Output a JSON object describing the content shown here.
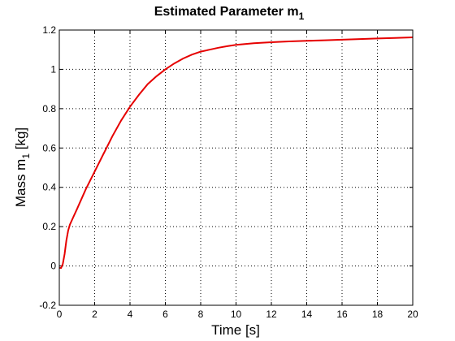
{
  "chart_data": {
    "type": "line",
    "title": "Estimated Parameter m",
    "title_subscript": "1",
    "xlabel": "Time [s]",
    "ylabel": "Mass m",
    "ylabel_subscript": "1",
    "ylabel_suffix": " [kg]",
    "xlim": [
      0,
      20
    ],
    "ylim": [
      -0.2,
      1.2
    ],
    "x_ticks": [
      0,
      2,
      4,
      6,
      8,
      10,
      12,
      14,
      16,
      18,
      20
    ],
    "x_tick_labels": [
      "0",
      "2",
      "4",
      "6",
      "8",
      "10",
      "12",
      "14",
      "16",
      "18",
      "20"
    ],
    "y_ticks": [
      -0.2,
      0,
      0.2,
      0.4,
      0.6,
      0.8,
      1,
      1.2
    ],
    "y_tick_labels": [
      "-0.2",
      "0",
      "0.2",
      "0.4",
      "0.6",
      "0.8",
      "1",
      "1.2"
    ],
    "grid": true,
    "grid_style": "dotted",
    "line_color": "#e60000",
    "series": [
      {
        "x": [
          0,
          0.1,
          0.2,
          0.3,
          0.4,
          0.5,
          0.6,
          0.8,
          1,
          1.5,
          2,
          2.5,
          3,
          3.5,
          4,
          4.5,
          5,
          5.5,
          6,
          6.5,
          7,
          7.5,
          8,
          8.5,
          9,
          9.5,
          10,
          11,
          12,
          13,
          14,
          15,
          16,
          17,
          18,
          19,
          20
        ],
        "y": [
          -0.01,
          -0.01,
          0.01,
          0.06,
          0.13,
          0.18,
          0.21,
          0.25,
          0.29,
          0.39,
          0.48,
          0.57,
          0.66,
          0.74,
          0.81,
          0.87,
          0.925,
          0.965,
          1.0,
          1.03,
          1.055,
          1.075,
          1.09,
          1.1,
          1.11,
          1.118,
          1.125,
          1.133,
          1.138,
          1.142,
          1.145,
          1.148,
          1.151,
          1.154,
          1.157,
          1.16,
          1.163
        ]
      }
    ]
  }
}
